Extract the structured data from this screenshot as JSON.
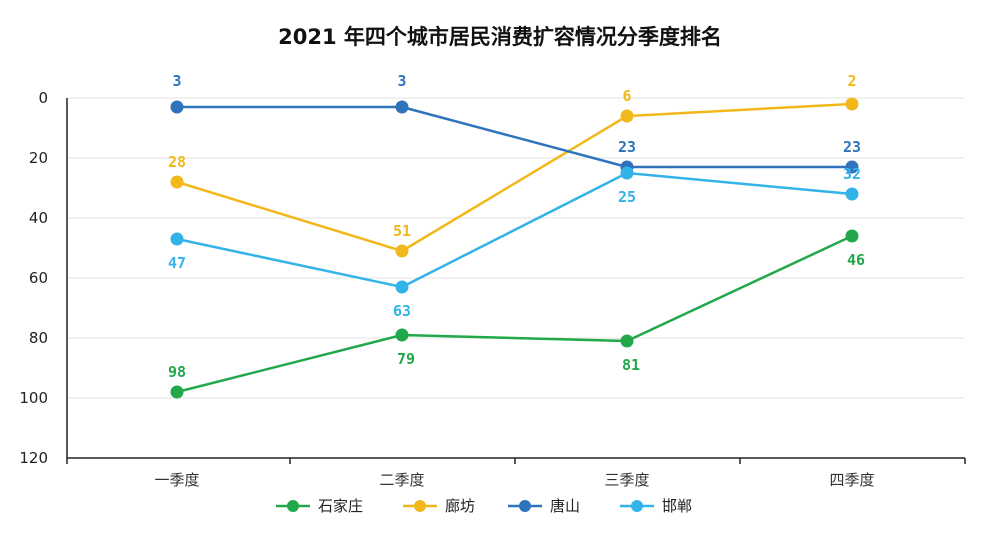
{
  "chart_data": {
    "type": "line",
    "title": "2021 年四个城市居民消费扩容情况分季度排名",
    "categories": [
      "一季度",
      "二季度",
      "三季度",
      "四季度"
    ],
    "ylim": [
      0,
      120
    ],
    "y_inverted": true,
    "yticks": [
      0,
      20,
      40,
      60,
      80,
      100,
      120
    ],
    "grid": true,
    "legend_position": "bottom",
    "series": [
      {
        "name": "石家庄",
        "color": "#22a84a",
        "values": [
          98,
          79,
          81,
          46
        ]
      },
      {
        "name": "廊坊",
        "color": "#f2b81b",
        "values": [
          28,
          51,
          6,
          2
        ]
      },
      {
        "name": "唐山",
        "color": "#2f73bd",
        "values": [
          3,
          3,
          23,
          23
        ]
      },
      {
        "name": "邯郸",
        "color": "#33b3e8",
        "values": [
          47,
          63,
          25,
          32
        ]
      }
    ]
  }
}
